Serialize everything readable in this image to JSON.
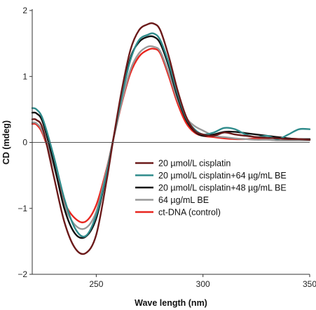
{
  "chart_data": {
    "type": "line",
    "title": "",
    "xlabel": "Wave length (nm)",
    "ylabel": "CD (mdeg)",
    "xlim": [
      220,
      350
    ],
    "ylim": [
      -2,
      2
    ],
    "x_ticks": [
      250,
      300,
      350
    ],
    "y_ticks": [
      -2,
      -1,
      0,
      1,
      2
    ],
    "x_tick_labels": [
      "250",
      "300",
      "350"
    ],
    "y_tick_labels": [
      "−2",
      "−1",
      "0",
      "1",
      "2"
    ],
    "grid": false,
    "legend_position": "center-right",
    "series": [
      {
        "name": "20 µmol/L cisplatin",
        "color": "#6b1a1a",
        "x": [
          220,
          222,
          225,
          230,
          235,
          240,
          245,
          250,
          255,
          258,
          262,
          266,
          270,
          274,
          277,
          280,
          284,
          288,
          292,
          296,
          300,
          305,
          310,
          315,
          320,
          325,
          330,
          335,
          340,
          345,
          350
        ],
        "y": [
          0.35,
          0.34,
          0.2,
          -0.5,
          -1.2,
          -1.6,
          -1.68,
          -1.4,
          -0.55,
          0.05,
          0.8,
          1.4,
          1.7,
          1.79,
          1.8,
          1.7,
          1.3,
          0.8,
          0.4,
          0.18,
          0.12,
          0.1,
          0.15,
          0.12,
          0.1,
          0.08,
          0.07,
          0.06,
          0.05,
          0.05,
          0.04
        ]
      },
      {
        "name": "20 µmol/L cisplatin+64 µg/mL BE",
        "color": "#2e8b8b",
        "x": [
          220,
          222,
          225,
          230,
          235,
          240,
          245,
          250,
          255,
          258,
          262,
          266,
          270,
          274,
          277,
          280,
          284,
          288,
          292,
          296,
          300,
          305,
          310,
          315,
          320,
          325,
          330,
          335,
          340,
          345,
          350
        ],
        "y": [
          0.52,
          0.5,
          0.35,
          -0.2,
          -0.85,
          -1.3,
          -1.42,
          -1.1,
          -0.45,
          0.05,
          0.7,
          1.25,
          1.55,
          1.63,
          1.65,
          1.55,
          1.2,
          0.75,
          0.38,
          0.2,
          0.12,
          0.15,
          0.22,
          0.2,
          0.12,
          0.08,
          0.1,
          0.05,
          0.12,
          0.2,
          0.2
        ]
      },
      {
        "name": "20 µmol/L cisplatin+48 µg/mL BE",
        "color": "#111111",
        "x": [
          220,
          222,
          225,
          230,
          235,
          240,
          245,
          250,
          255,
          258,
          262,
          266,
          270,
          274,
          277,
          280,
          284,
          288,
          292,
          296,
          300,
          305,
          310,
          315,
          320,
          325,
          330,
          335,
          340,
          345,
          350
        ],
        "y": [
          0.45,
          0.44,
          0.3,
          -0.3,
          -1.0,
          -1.38,
          -1.43,
          -1.15,
          -0.45,
          0.05,
          0.72,
          1.28,
          1.52,
          1.6,
          1.6,
          1.5,
          1.15,
          0.7,
          0.35,
          0.17,
          0.1,
          0.12,
          0.16,
          0.16,
          0.14,
          0.12,
          0.1,
          0.08,
          0.06,
          0.05,
          0.05
        ]
      },
      {
        "name": "64 µg/mL BE",
        "color": "#999999",
        "x": [
          220,
          222,
          225,
          230,
          235,
          240,
          245,
          250,
          255,
          258,
          262,
          266,
          270,
          274,
          277,
          280,
          284,
          288,
          292,
          296,
          300,
          305,
          310,
          315,
          320,
          325,
          330,
          335,
          340,
          345,
          350
        ],
        "y": [
          0.3,
          0.29,
          0.15,
          -0.35,
          -0.95,
          -1.25,
          -1.3,
          -1.05,
          -0.4,
          0.05,
          0.62,
          1.1,
          1.35,
          1.45,
          1.45,
          1.38,
          1.05,
          0.65,
          0.38,
          0.25,
          0.18,
          0.1,
          0.08,
          0.06,
          0.05,
          0.04,
          0.04,
          0.03,
          0.03,
          0.03,
          0.03
        ]
      },
      {
        "name": "ct-DNA (control)",
        "color": "#e8261f",
        "x": [
          220,
          222,
          225,
          230,
          235,
          240,
          245,
          250,
          255,
          258,
          262,
          266,
          270,
          274,
          277,
          280,
          284,
          288,
          292,
          296,
          300,
          305,
          310,
          315,
          320,
          325,
          330,
          335,
          340,
          345,
          350
        ],
        "y": [
          0.28,
          0.27,
          0.12,
          -0.35,
          -0.9,
          -1.15,
          -1.2,
          -0.95,
          -0.38,
          0.05,
          0.6,
          1.05,
          1.3,
          1.4,
          1.42,
          1.35,
          1.0,
          0.6,
          0.3,
          0.15,
          0.1,
          0.08,
          0.06,
          0.05,
          0.05,
          0.06,
          0.06,
          0.08,
          0.06,
          0.05,
          0.04
        ]
      }
    ]
  }
}
